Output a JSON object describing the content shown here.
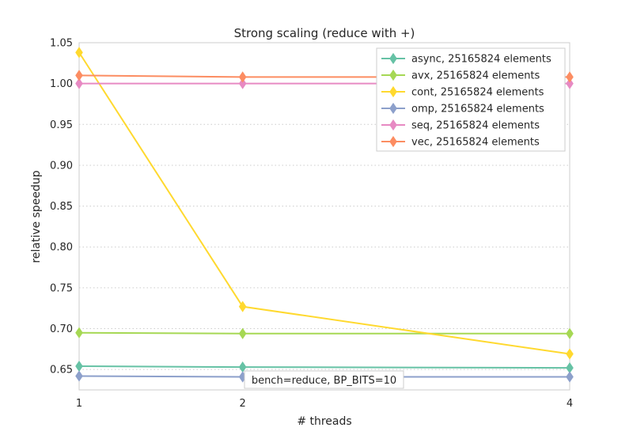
{
  "chart_data": {
    "type": "line",
    "title": "Strong scaling (reduce with +)",
    "xlabel": "# threads",
    "ylabel": "relative speedup",
    "x": [
      1,
      2,
      4
    ],
    "x_ticks": [
      "1",
      "2",
      "4"
    ],
    "ylim": [
      0.625,
      1.05
    ],
    "y_ticks": [
      "0.65",
      "0.70",
      "0.75",
      "0.80",
      "0.85",
      "0.90",
      "0.95",
      "1.00",
      "1.05"
    ],
    "grid": "horizontal dotted",
    "legend_position": "top-right",
    "annotation": "bench=reduce, BP_BITS=10",
    "series": [
      {
        "name": "async, 25165824 elements",
        "color": "#66c2a5",
        "values": [
          0.654,
          0.653,
          0.652
        ]
      },
      {
        "name": "avx, 25165824 elements",
        "color": "#a6d854",
        "values": [
          0.695,
          0.694,
          0.694
        ]
      },
      {
        "name": "cont, 25165824 elements",
        "color": "#ffd92f",
        "values": [
          1.038,
          0.727,
          0.669
        ]
      },
      {
        "name": "omp, 25165824 elements",
        "color": "#8da0cb",
        "values": [
          0.642,
          0.641,
          0.641
        ]
      },
      {
        "name": "seq, 25165824 elements",
        "color": "#e78ac3",
        "values": [
          1.0,
          1.0,
          1.0
        ]
      },
      {
        "name": "vec, 25165824 elements",
        "color": "#fc8d62",
        "values": [
          1.01,
          1.008,
          1.008
        ]
      }
    ]
  }
}
